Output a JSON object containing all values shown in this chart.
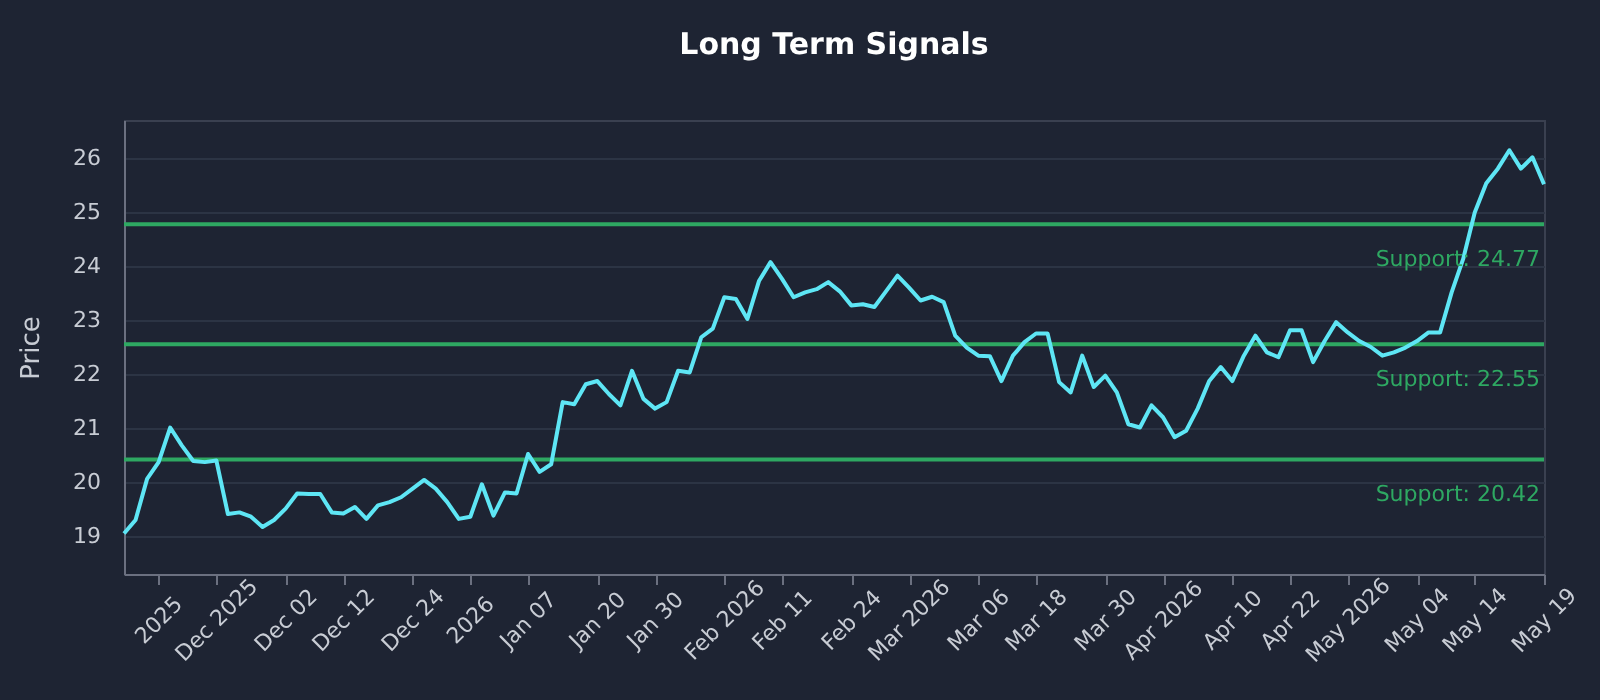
{
  "chart_data": {
    "type": "line",
    "title": "Long Term Signals",
    "ylabel": "Price",
    "categories": [
      null,
      null,
      null,
      "2025",
      null,
      null,
      null,
      null,
      "Dec 2025",
      null,
      null,
      null,
      null,
      null,
      "Dec 02",
      null,
      null,
      null,
      null,
      "Dec 12",
      null,
      null,
      null,
      null,
      null,
      "Dec 24",
      null,
      null,
      null,
      null,
      "2026",
      null,
      null,
      null,
      null,
      "Jan 07",
      null,
      null,
      null,
      null,
      null,
      "Jan 20",
      null,
      null,
      null,
      null,
      "Jan 30",
      null,
      null,
      null,
      null,
      null,
      "Feb 2026",
      null,
      null,
      null,
      null,
      "Feb 11",
      null,
      null,
      null,
      null,
      null,
      "Feb 24",
      null,
      null,
      null,
      null,
      "Mar 2026",
      null,
      null,
      null,
      null,
      null,
      "Mar 06",
      null,
      null,
      null,
      null,
      "Mar 18",
      null,
      null,
      null,
      null,
      null,
      "Mar 30",
      null,
      null,
      null,
      null,
      "Apr 2026",
      null,
      null,
      null,
      null,
      null,
      "Apr 10",
      null,
      null,
      null,
      null,
      "Apr 22",
      null,
      null,
      null,
      null,
      "May 2026",
      null,
      null,
      null,
      null,
      null,
      "May 04",
      null,
      null,
      null,
      null,
      "May 14",
      null,
      null,
      null,
      null,
      null,
      "May 19"
    ],
    "series": [
      {
        "color": "#5ee6f5",
        "values": [
          19.05,
          19.3,
          20.06,
          20.37,
          21.01,
          20.68,
          20.39,
          20.37,
          20.4,
          19.41,
          19.44,
          19.36,
          19.17,
          19.3,
          19.51,
          19.79,
          19.78,
          19.78,
          19.44,
          19.42,
          19.54,
          19.32,
          19.57,
          19.63,
          19.72,
          19.88,
          20.04,
          19.88,
          19.63,
          19.32,
          19.36,
          19.96,
          19.38,
          19.81,
          19.79,
          20.52,
          20.19,
          20.33,
          21.48,
          21.44,
          21.81,
          21.87,
          21.63,
          21.42,
          22.06,
          21.54,
          21.36,
          21.48,
          22.06,
          22.03,
          22.68,
          22.84,
          23.42,
          23.39,
          23.02,
          23.72,
          24.07,
          23.76,
          23.42,
          23.51,
          23.57,
          23.7,
          23.53,
          23.27,
          23.29,
          23.24,
          23.53,
          23.82,
          23.6,
          23.36,
          23.43,
          23.33,
          22.71,
          22.49,
          22.34,
          22.33,
          21.87,
          22.34,
          22.59,
          22.75,
          22.75,
          21.85,
          21.66,
          22.34,
          21.76,
          21.97,
          21.66,
          21.07,
          21.01,
          21.42,
          21.2,
          20.83,
          20.95,
          21.36,
          21.87,
          22.13,
          21.87,
          22.34,
          22.71,
          22.4,
          22.31,
          22.81,
          22.81,
          22.22,
          22.61,
          22.96,
          22.77,
          22.61,
          22.5,
          22.34,
          22.4,
          22.49,
          22.61,
          22.77,
          22.77,
          23.51,
          24.13,
          24.99,
          25.53,
          25.8,
          26.14,
          25.8,
          26.01,
          25.51
        ]
      }
    ],
    "ylim": [
      18.3,
      26.7
    ],
    "yticks": [
      19,
      20,
      21,
      22,
      23,
      24,
      25,
      26
    ],
    "grid": "y",
    "marker": "none",
    "line_style": "solid",
    "ref_lines": [
      {
        "axis": "y",
        "value": 24.77,
        "label": "Support: 24.77",
        "color": "#2ea862"
      },
      {
        "axis": "y",
        "value": 22.55,
        "label": "Support: 22.55",
        "color": "#2ea862"
      },
      {
        "axis": "y",
        "value": 20.42,
        "label": "Support: 20.42",
        "color": "#2ea862"
      }
    ]
  }
}
